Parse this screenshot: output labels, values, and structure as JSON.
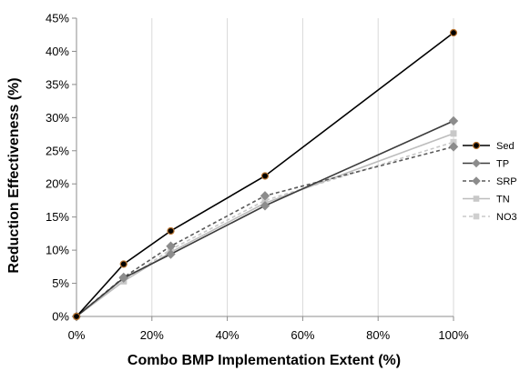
{
  "chart_data": {
    "type": "line",
    "title": "",
    "xlabel": "Combo BMP Implementation Extent (%)",
    "ylabel": "Reduction Effectiveness (%)",
    "xlim": [
      0,
      100
    ],
    "ylim": [
      0,
      45
    ],
    "x_ticks": [
      0,
      20,
      40,
      60,
      80,
      100
    ],
    "x_tick_labels": [
      "0%",
      "20%",
      "40%",
      "60%",
      "80%",
      "100%"
    ],
    "y_ticks": [
      0,
      5,
      10,
      15,
      20,
      25,
      30,
      35,
      40,
      45
    ],
    "y_tick_labels": [
      "0%",
      "5%",
      "10%",
      "15%",
      "20%",
      "25%",
      "30%",
      "35%",
      "40%",
      "45%"
    ],
    "grid": "vertical",
    "legend_position": "right",
    "x": [
      0,
      12.5,
      25,
      50,
      100
    ],
    "series": [
      {
        "name": "Sed",
        "values": [
          0,
          7.9,
          12.9,
          21.2,
          42.8
        ],
        "color": "#000000",
        "dash": "solid",
        "marker": "circle",
        "marker_fill": "#000000",
        "marker_stroke": "#b8732f"
      },
      {
        "name": "TP",
        "values": [
          0,
          5.8,
          9.4,
          16.7,
          29.5
        ],
        "color": "#3c3c3c",
        "dash": "solid",
        "marker": "diamond",
        "marker_fill": "#8c8c8c",
        "marker_stroke": "#8c8c8c"
      },
      {
        "name": "SRP",
        "values": [
          0,
          5.9,
          10.6,
          18.2,
          25.6
        ],
        "color": "#5a5a5a",
        "dash": "dashed",
        "marker": "diamond",
        "marker_fill": "#8c8c8c",
        "marker_stroke": "#8c8c8c"
      },
      {
        "name": "TN",
        "values": [
          0,
          5.3,
          9.7,
          17.1,
          27.6
        ],
        "color": "#bdbdbd",
        "dash": "solid",
        "marker": "square",
        "marker_fill": "#c8c8c8",
        "marker_stroke": "#c8c8c8"
      },
      {
        "name": "NO3",
        "values": [
          0,
          5.4,
          10.1,
          17.5,
          26.3
        ],
        "color": "#c8c8c8",
        "dash": "dashed",
        "marker": "square",
        "marker_fill": "#cfcfcf",
        "marker_stroke": "#cfcfcf"
      }
    ]
  }
}
